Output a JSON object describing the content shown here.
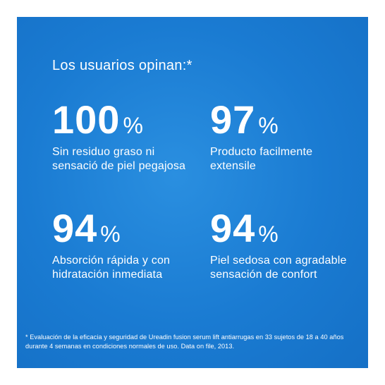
{
  "heading": "Los usuarios opinan:*",
  "stats": [
    {
      "value": "100",
      "unit": "%",
      "description": "Sin residuo graso ni sensació de piel pegajosa"
    },
    {
      "value": "97",
      "unit": "%",
      "description": "Producto facilmente extensile"
    },
    {
      "value": "94",
      "unit": "%",
      "description": "Absorción rápida y con hidratación inmediata"
    },
    {
      "value": "94",
      "unit": "%",
      "description": "Piel sedosa con agradable sensación de confort"
    }
  ],
  "footnote": "* Evaluación de la eficacia y seguridad de Ureadin fusion serum lift antiarrugas en 33 sujetos de 18 a 40 años durante 4 semanas en condiciones normales de uso. Data on file, 2013.",
  "colors": {
    "background": "#1a7bd2",
    "text": "#ffffff"
  }
}
